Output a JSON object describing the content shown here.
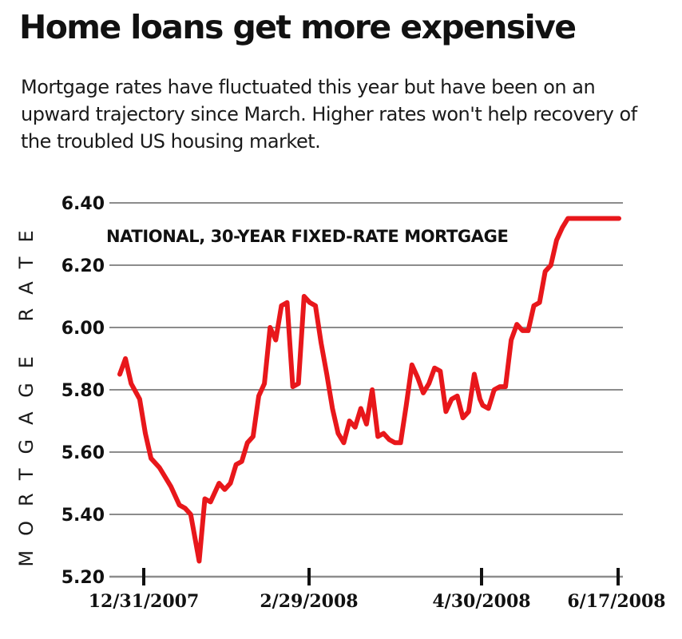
{
  "header": {
    "title": "Home loans get more expensive",
    "subtitle": "Mortgage rates have fluctuated this year but have been on an upward trajectory since March. Higher rates won't help recovery of the troubled US housing market."
  },
  "colors": {
    "line": "#e8171b",
    "grid": "#8c8c8c",
    "text": "#1a1a1a"
  },
  "chart_data": {
    "type": "line",
    "title": "NATIONAL, 30-YEAR FIXED-RATE MORTGAGE",
    "ylabel": "MORTGAGE RATE",
    "xlabel": "",
    "ylim": [
      5.2,
      6.4
    ],
    "yticks": [
      "5.20",
      "5.40",
      "5.60",
      "5.80",
      "6.00",
      "6.20",
      "6.40"
    ],
    "xticks": [
      "12/31/2007",
      "2/29/2008",
      "4/30/2008",
      "6/17/2008"
    ],
    "grid": true,
    "series": [
      {
        "x": [
          "2007-12-24",
          "2007-12-26",
          "2007-12-28",
          "2007-12-31",
          "2008-01-02",
          "2008-01-04",
          "2008-01-07",
          "2008-01-09",
          "2008-01-11",
          "2008-01-14",
          "2008-01-16",
          "2008-01-18",
          "2008-01-21",
          "2008-01-23",
          "2008-01-25",
          "2008-01-28",
          "2008-01-30",
          "2008-02-01",
          "2008-02-03",
          "2008-02-05",
          "2008-02-07",
          "2008-02-09",
          "2008-02-11",
          "2008-02-13",
          "2008-02-15",
          "2008-02-17",
          "2008-02-19",
          "2008-02-21",
          "2008-02-23",
          "2008-02-25",
          "2008-02-27",
          "2008-02-29",
          "2008-03-02",
          "2008-03-04",
          "2008-03-06",
          "2008-03-08",
          "2008-03-10",
          "2008-03-12",
          "2008-03-14",
          "2008-03-16",
          "2008-03-18",
          "2008-03-20",
          "2008-03-22",
          "2008-03-24",
          "2008-03-26",
          "2008-03-28",
          "2008-03-30",
          "2008-04-01",
          "2008-04-03",
          "2008-04-05",
          "2008-04-07",
          "2008-04-09",
          "2008-04-11",
          "2008-04-13",
          "2008-04-15",
          "2008-04-17",
          "2008-04-19",
          "2008-04-21",
          "2008-04-23",
          "2008-04-25",
          "2008-04-27",
          "2008-04-29",
          "2008-04-30",
          "2008-05-02",
          "2008-05-04",
          "2008-05-06",
          "2008-05-08",
          "2008-05-10",
          "2008-05-12",
          "2008-05-14",
          "2008-05-16",
          "2008-05-18",
          "2008-05-20",
          "2008-05-22",
          "2008-05-24",
          "2008-05-26",
          "2008-05-28",
          "2008-05-30",
          "2008-06-01",
          "2008-06-03",
          "2008-06-05",
          "2008-06-07",
          "2008-06-09",
          "2008-06-11",
          "2008-06-13",
          "2008-06-15",
          "2008-06-17"
        ],
        "y": [
          5.85,
          5.9,
          5.82,
          5.77,
          5.66,
          5.58,
          5.55,
          5.52,
          5.49,
          5.43,
          5.42,
          5.4,
          5.25,
          5.45,
          5.44,
          5.5,
          5.48,
          5.5,
          5.56,
          5.57,
          5.63,
          5.65,
          5.78,
          5.82,
          6.0,
          5.96,
          6.07,
          6.08,
          5.81,
          5.82,
          6.1,
          6.08,
          6.07,
          5.95,
          5.85,
          5.74,
          5.66,
          5.63,
          5.7,
          5.68,
          5.74,
          5.69,
          5.8,
          5.65,
          5.66,
          5.64,
          5.63,
          5.63,
          5.75,
          5.88,
          5.84,
          5.79,
          5.82,
          5.87,
          5.86,
          5.73,
          5.77,
          5.78,
          5.71,
          5.73,
          5.85,
          5.77,
          5.75,
          5.74,
          5.8,
          5.81,
          5.81,
          5.96,
          6.01,
          5.99,
          5.99,
          6.07,
          6.08,
          6.18,
          6.2,
          6.28,
          6.32,
          6.35,
          6.35,
          6.35,
          6.35,
          6.35,
          6.35,
          6.35,
          6.35,
          6.35,
          6.35
        ]
      }
    ]
  }
}
